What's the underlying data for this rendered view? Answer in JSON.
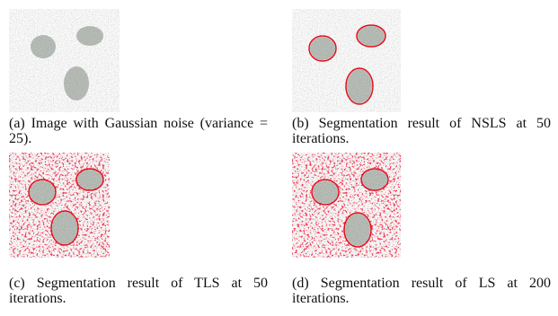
{
  "figure": {
    "panels": [
      {
        "caption": "(a) Image with Gaussian noise (variance = 25)."
      },
      {
        "caption": "(b) Segmentation result of NSLS at 50 iterations."
      },
      {
        "caption": "(c) Segmentation result of TLS at 50 iterations."
      },
      {
        "caption": "(d) Segmentation result of LS at 200 iterations."
      }
    ]
  }
}
